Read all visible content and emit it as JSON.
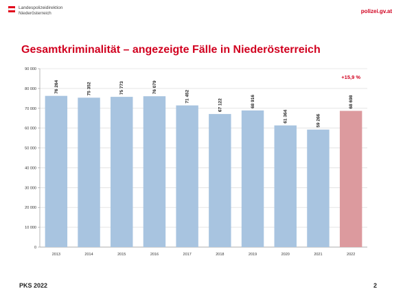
{
  "header": {
    "org_line1": "Landespolizeidirektion",
    "org_line2": "Niederösterreich",
    "site": "polizei.gv.at"
  },
  "slide": {
    "title": "Gesamtkriminalität – angezeigte Fälle in Niederösterreich",
    "footer_left": "PKS 2022",
    "page_number": "2"
  },
  "colors": {
    "accent": "#d1001f",
    "bar_default": "#a8c4e0",
    "bar_highlight": "#dc9a9e"
  },
  "chart_data": {
    "type": "bar",
    "title": "",
    "xlabel": "",
    "ylabel": "",
    "ylim": [
      0,
      90000
    ],
    "yticks": [
      0,
      10000,
      20000,
      30000,
      40000,
      50000,
      60000,
      70000,
      80000,
      90000
    ],
    "ytick_labels": [
      "0",
      "10 000",
      "20 000",
      "30 000",
      "40 000",
      "50 000",
      "60 000",
      "70 000",
      "80 000",
      "90 000"
    ],
    "categories": [
      "2013",
      "2014",
      "2015",
      "2016",
      "2017",
      "2018",
      "2019",
      "2020",
      "2021",
      "2022"
    ],
    "values": [
      76264,
      75352,
      75773,
      76079,
      71452,
      67122,
      68916,
      61364,
      59266,
      68698
    ],
    "value_labels": [
      "76 264",
      "75 352",
      "75 773",
      "76 079",
      "71 452",
      "67 122",
      "68 916",
      "61 364",
      "59 266",
      "68 698"
    ],
    "highlight_index": 9,
    "annotation": "+15,9 %",
    "grid": true,
    "legend": "none"
  }
}
